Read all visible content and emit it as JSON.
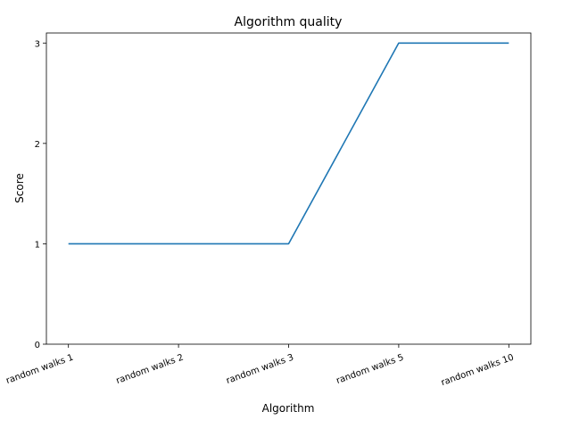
{
  "chart_data": {
    "type": "line",
    "title": "Algorithm quality",
    "xlabel": "Algorithm",
    "ylabel": "Score",
    "categories": [
      "random walks 1",
      "random walks 2",
      "random walks 3",
      "random walks 5",
      "random walks 10"
    ],
    "series": [
      {
        "values": [
          1,
          1,
          1,
          3,
          3
        ],
        "color": "#1f77b4"
      }
    ],
    "yticks": [
      0,
      1,
      2,
      3
    ],
    "ylim": [
      0,
      3.1
    ],
    "grid": false,
    "legend": "none"
  }
}
